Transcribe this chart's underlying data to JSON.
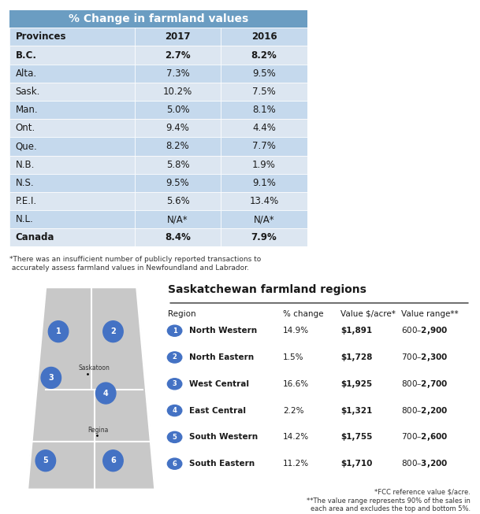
{
  "title": "% Change in farmland values",
  "title_bg": "#6b9dc2",
  "title_color": "#ffffff",
  "header_row": [
    "Provinces",
    "2017",
    "2016"
  ],
  "table_rows": [
    [
      "B.C.",
      "2.7%",
      "8.2%"
    ],
    [
      "Alta.",
      "7.3%",
      "9.5%"
    ],
    [
      "Sask.",
      "10.2%",
      "7.5%"
    ],
    [
      "Man.",
      "5.0%",
      "8.1%"
    ],
    [
      "Ont.",
      "9.4%",
      "4.4%"
    ],
    [
      "Que.",
      "8.2%",
      "7.7%"
    ],
    [
      "N.B.",
      "5.8%",
      "1.9%"
    ],
    [
      "N.S.",
      "9.5%",
      "9.1%"
    ],
    [
      "P.E.I.",
      "5.6%",
      "13.4%"
    ],
    [
      "N.L.",
      "N/A*",
      "N/A*"
    ],
    [
      "Canada",
      "8.4%",
      "7.9%"
    ]
  ],
  "bold_rows": [
    0,
    10
  ],
  "row_bg_light": "#dce6f1",
  "row_bg_dark": "#c5d9ed",
  "footnote1": "*There was an insufficient number of publicly reported transactions to\n accurately assess farmland values in Newfoundland and Labrador.",
  "sk_title": "Saskatchewan farmland regions",
  "sk_headers": [
    "Region",
    "% change",
    "Value $/acre*",
    "Value range**"
  ],
  "sk_regions": [
    {
      "num": "1",
      "name": "North Western",
      "change": "14.9%",
      "value": "$1,891",
      "range": "$600 – $2,900"
    },
    {
      "num": "2",
      "name": "North Eastern",
      "change": "1.5%",
      "value": "$1,728",
      "range": "$700 – $2,300"
    },
    {
      "num": "3",
      "name": "West Central",
      "change": "16.6%",
      "value": "$1,925",
      "range": "$800 – $2,700"
    },
    {
      "num": "4",
      "name": "East Central",
      "change": "2.2%",
      "value": "$1,321",
      "range": "$800 – $2,200"
    },
    {
      "num": "5",
      "name": "South Western",
      "change": "14.2%",
      "value": "$1,755",
      "range": "$700 – $2,600"
    },
    {
      "num": "6",
      "name": "South Eastern",
      "change": "11.2%",
      "value": "$1,710",
      "range": "$800 – $3,200"
    }
  ],
  "sk_footnote1": "*FCC reference value $/acre.",
  "sk_footnote2": "**The value range represents 90% of the sales in\neach area and excludes the top and bottom 5%.",
  "circle_color": "#4472c4",
  "map_color": "#c8c8c8",
  "map_border": "#ffffff"
}
